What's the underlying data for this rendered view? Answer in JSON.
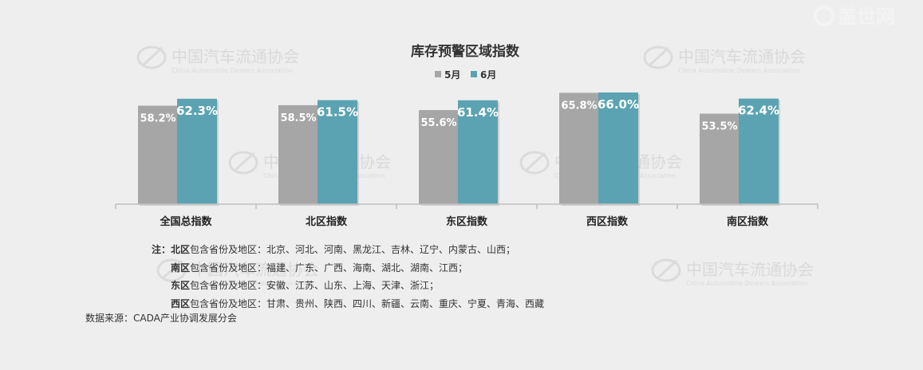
{
  "chart_data": {
    "type": "bar",
    "title": "库存预警区域指数",
    "categories": [
      "全国总指数",
      "北区指数",
      "东区指数",
      "西区指数",
      "南区指数"
    ],
    "series": [
      {
        "name": "5月",
        "values": [
          58.2,
          58.5,
          55.6,
          65.8,
          53.5
        ],
        "color": "#a6a6a6"
      },
      {
        "name": "6月",
        "values": [
          62.3,
          61.5,
          61.4,
          66.0,
          62.4
        ],
        "color": "#5ba3b2"
      }
    ],
    "value_labels": [
      [
        "58.2%",
        "58.5%",
        "55.6%",
        "65.8%",
        "53.5%"
      ],
      [
        "62.3%",
        "61.5%",
        "61.4%",
        "66.0%",
        "62.4%"
      ]
    ],
    "legend_position": "top-center",
    "grid": false
  },
  "notes": {
    "prefix": "注：",
    "items": [
      {
        "region": "北区",
        "suffix": "包含省份及地区：北京、河北、河南、黑龙江、吉林、辽宁、内蒙古、山西；"
      },
      {
        "region": "南区",
        "suffix": "包含省份及地区：福建、广东、广西、海南、湖北、湖南、江西；"
      },
      {
        "region": "东区",
        "suffix": "包含省份及地区：安徽、江苏、山东、上海、天津、浙江；"
      },
      {
        "region": "西区",
        "suffix": "包含省份及地区：甘肃、贵州、陕西、四川、新疆、云南、重庆、宁夏、青海、西藏"
      }
    ]
  },
  "source": "数据来源：CADA产业协调发展分会",
  "watermark": {
    "org_cn": "中国汽车流通协会",
    "org_en": "China Automobile Dealers Association",
    "site": "盖世网"
  }
}
